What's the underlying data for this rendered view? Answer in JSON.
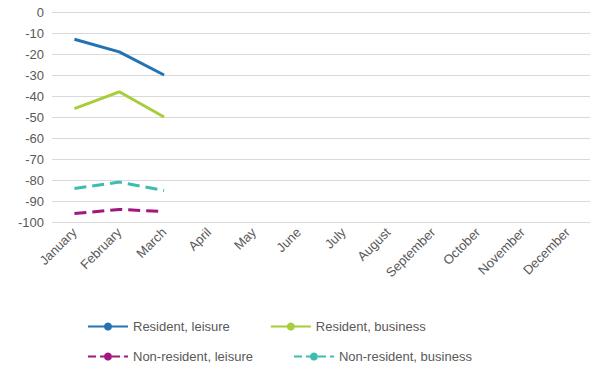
{
  "chart_data": {
    "type": "line",
    "categories": [
      "January",
      "February",
      "March",
      "April",
      "May",
      "June",
      "July",
      "August",
      "September",
      "October",
      "November",
      "December"
    ],
    "series": [
      {
        "name": "Resident, leisure",
        "color": "#2272b4",
        "line_style": "solid",
        "values": [
          -13,
          -19,
          -30,
          null,
          null,
          null,
          null,
          null,
          null,
          null,
          null,
          null
        ]
      },
      {
        "name": "Resident, business",
        "color": "#a6ce39",
        "line_style": "solid",
        "values": [
          -46,
          -38,
          -50,
          null,
          null,
          null,
          null,
          null,
          null,
          null,
          null,
          null
        ]
      },
      {
        "name": "Non-resident, leisure",
        "color": "#a0177f",
        "line_style": "dashed",
        "values": [
          -96,
          -94,
          -95,
          null,
          null,
          null,
          null,
          null,
          null,
          null,
          null,
          null
        ]
      },
      {
        "name": "Non-resident, business",
        "color": "#3dbdb0",
        "line_style": "dashed",
        "values": [
          -84,
          -81,
          -85,
          null,
          null,
          null,
          null,
          null,
          null,
          null,
          null,
          null
        ]
      }
    ],
    "ylim": [
      -100,
      0
    ],
    "yticks": [
      -100,
      -90,
      -80,
      -70,
      -60,
      -50,
      -40,
      -30,
      -20,
      -10,
      0
    ],
    "grid": true,
    "legend": "bottom"
  }
}
